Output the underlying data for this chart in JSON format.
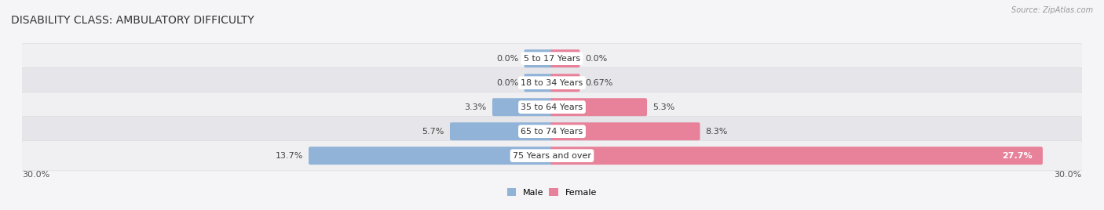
{
  "title": "DISABILITY CLASS: AMBULATORY DIFFICULTY",
  "source": "Source: ZipAtlas.com",
  "categories": [
    "5 to 17 Years",
    "18 to 34 Years",
    "35 to 64 Years",
    "65 to 74 Years",
    "75 Years and over"
  ],
  "male_values": [
    0.0,
    0.0,
    3.3,
    5.7,
    13.7
  ],
  "female_values": [
    0.0,
    0.67,
    5.3,
    8.3,
    27.7
  ],
  "male_labels": [
    "0.0%",
    "0.0%",
    "3.3%",
    "5.7%",
    "13.7%"
  ],
  "female_labels": [
    "0.0%",
    "0.67%",
    "5.3%",
    "8.3%",
    "27.7%"
  ],
  "male_color": "#90b3d7",
  "female_color": "#e8829a",
  "row_bg_color_odd": "#f0f0f2",
  "row_bg_color_even": "#e6e6ea",
  "separator_color": "#d0d0d8",
  "max_value": 30.0,
  "axis_label_left": "30.0%",
  "axis_label_right": "30.0%",
  "legend_male": "Male",
  "legend_female": "Female",
  "title_fontsize": 10,
  "label_fontsize": 8,
  "category_fontsize": 8,
  "axis_fontsize": 8,
  "bar_height": 0.58,
  "stub_value": 1.5,
  "background_color": "#f5f5f7",
  "female_label_inside_threshold": 20.0,
  "female_label_inside_color": "white"
}
